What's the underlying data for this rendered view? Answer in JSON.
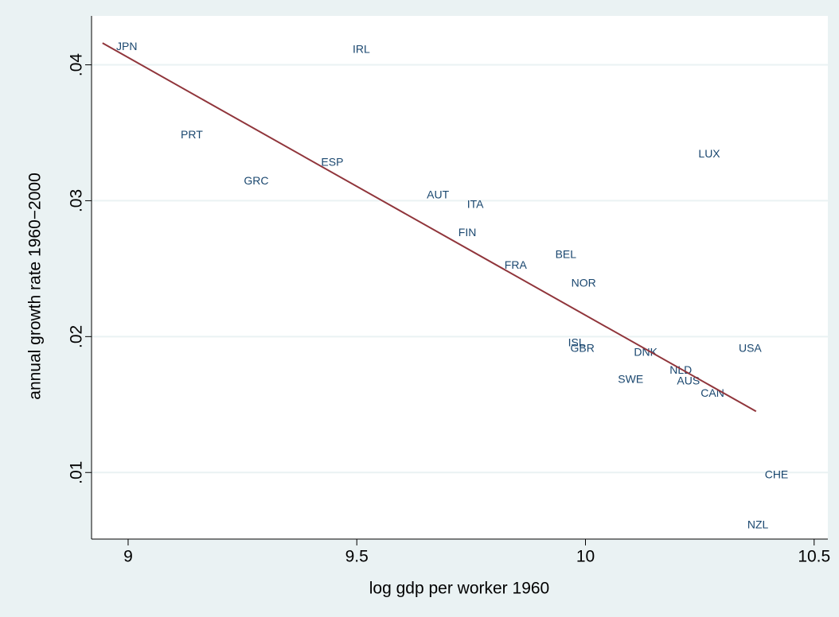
{
  "chart_data": {
    "type": "scatter",
    "x_label": "log gdp per worker 1960",
    "y_label": "annual growth rate 1960−2000",
    "points": {
      "labels": [
        "JPN",
        "IRL",
        "PRT",
        "ESP",
        "GRC",
        "AUT",
        "ITA",
        "FIN",
        "FRA",
        "BEL",
        "NOR",
        "ISL",
        "GBR",
        "DNK",
        "SWE",
        "NLD",
        "AUS",
        "CAN",
        "LUX",
        "USA",
        "CHE",
        "NZL"
      ],
      "x": [
        8.974,
        9.491,
        9.115,
        9.422,
        9.253,
        9.653,
        9.741,
        9.722,
        9.823,
        9.934,
        9.969,
        9.962,
        9.967,
        10.106,
        10.071,
        10.184,
        10.2,
        10.252,
        10.247,
        10.335,
        10.392,
        10.354
      ],
      "values": [
        0.0413,
        0.0411,
        0.0348,
        0.0328,
        0.0314,
        0.0304,
        0.0297,
        0.0276,
        0.0252,
        0.026,
        0.0239,
        0.0195,
        0.0191,
        0.0188,
        0.0168,
        0.0175,
        0.0167,
        0.0158,
        0.0334,
        0.0191,
        0.0098,
        0.0061
      ],
      "color": "#1a476f"
    },
    "fit": {
      "x": [
        8.944,
        10.373
      ],
      "values": [
        0.0416,
        0.0145
      ],
      "color": "#90353b"
    },
    "xlim": [
      8.92,
      10.53
    ],
    "ylim": [
      0.0051,
      0.0436
    ],
    "xticks": [
      9,
      9.5,
      10,
      10.5
    ],
    "yticks": [
      {
        "value": 0.01,
        "label": ".01"
      },
      {
        "value": 0.02,
        "label": ".02"
      },
      {
        "value": 0.03,
        "label": ".03"
      },
      {
        "value": 0.04,
        "label": ".04"
      }
    ],
    "grid": true
  }
}
